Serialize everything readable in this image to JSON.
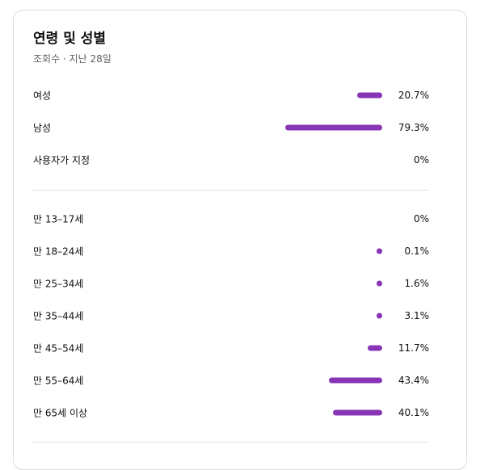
{
  "title": "연령 및 성별",
  "subtitle": "조회수 · 지난 28일",
  "bar_color": "#8834b6",
  "gender": [
    {
      "label": "여성",
      "value": "20.7%",
      "pct": 20.7
    },
    {
      "label": "남성",
      "value": "79.3%",
      "pct": 79.3
    },
    {
      "label": "사용자가 지정",
      "value": "0%",
      "pct": 0
    }
  ],
  "age": [
    {
      "label": "만 13–17세",
      "value": "0%",
      "pct": 0
    },
    {
      "label": "만 18–24세",
      "value": "0.1%",
      "pct": 0.1
    },
    {
      "label": "만 25–34세",
      "value": "1.6%",
      "pct": 1.6
    },
    {
      "label": "만 35–44세",
      "value": "3.1%",
      "pct": 3.1
    },
    {
      "label": "만 45–54세",
      "value": "11.7%",
      "pct": 11.7
    },
    {
      "label": "만 55–64세",
      "value": "43.4%",
      "pct": 43.4
    },
    {
      "label": "만 65세 이상",
      "value": "40.1%",
      "pct": 40.1
    }
  ]
}
